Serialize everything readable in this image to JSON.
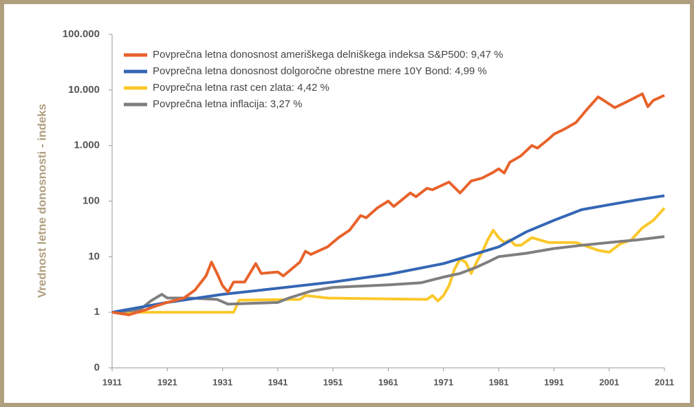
{
  "chart_data": {
    "type": "line",
    "y_label": "Vrednost letne donosnosti - indeks",
    "log_scale": true,
    "legend": "upper-left",
    "xlim": [
      1911,
      2011
    ],
    "xticks": [
      1911,
      1921,
      1931,
      1941,
      1951,
      1961,
      1971,
      1981,
      1991,
      2001,
      2011
    ],
    "ylim": [
      0.1,
      100000
    ],
    "yticks": [
      {
        "value": 0.1,
        "label": "0"
      },
      1,
      10,
      100,
      {
        "value": 1000,
        "label": "1.000"
      },
      {
        "value": 10000,
        "label": "10.000"
      },
      {
        "value": 100000,
        "label": "100.000"
      }
    ],
    "series": [
      {
        "name": "Povprečna letna donosnost ameriškega delniškega indeksa S&P500: 9,47 %",
        "color": "#e8632b",
        "x": [
          1911,
          1914,
          1917,
          1919,
          1921,
          1924,
          1926,
          1928,
          1929,
          1930,
          1931,
          1932,
          1933,
          1935,
          1937,
          1938,
          1941,
          1942,
          1945,
          1946,
          1947,
          1950,
          1952,
          1954,
          1956,
          1957,
          1959,
          1961,
          1962,
          1965,
          1966,
          1968,
          1969,
          1972,
          1974,
          1976,
          1978,
          1980,
          1981,
          1982,
          1983,
          1985,
          1987,
          1988,
          1990,
          1991,
          1993,
          1995,
          1997,
          1999,
          2000,
          2002,
          2004,
          2007,
          2008,
          2009,
          2011
        ],
        "values": [
          1,
          0.9,
          1.1,
          1.3,
          1.5,
          1.8,
          2.5,
          4.5,
          8,
          5,
          3,
          2.3,
          3.5,
          3.5,
          7.5,
          5,
          5.3,
          4.5,
          8,
          12.5,
          11,
          15,
          22,
          30,
          55,
          50,
          75,
          100,
          80,
          140,
          120,
          170,
          160,
          220,
          140,
          230,
          260,
          330,
          380,
          320,
          500,
          650,
          1000,
          900,
          1300,
          1600,
          2000,
          2600,
          4500,
          7500,
          6500,
          4800,
          6000,
          8500,
          5000,
          6500,
          8000
        ]
      },
      {
        "name": "Povprečna letna donosnost dolgoročne obrestne mere 10Y Bond: 4,99 %",
        "color": "#3466b4",
        "x": [
          1911,
          1921,
          1931,
          1941,
          1951,
          1961,
          1971,
          1981,
          1986,
          1991,
          1996,
          2001,
          2006,
          2011
        ],
        "values": [
          1,
          1.5,
          2.1,
          2.7,
          3.5,
          4.8,
          7.5,
          15,
          28,
          45,
          70,
          86,
          105,
          125
        ]
      },
      {
        "name": "Povprečna letna rast cen zlata: 4,42 %",
        "color": "#fbc82a",
        "x": [
          1911,
          1933,
          1934,
          1945,
          1946,
          1950,
          1968,
          1969,
          1970,
          1971,
          1972,
          1973,
          1974,
          1975,
          1976,
          1977,
          1978,
          1979,
          1980,
          1981,
          1982,
          1983,
          1984,
          1985,
          1987,
          1990,
          1995,
          1999,
          2001,
          2003,
          2005,
          2007,
          2009,
          2011
        ],
        "values": [
          1,
          1,
          1.65,
          1.7,
          2,
          1.8,
          1.7,
          2,
          1.6,
          2,
          3,
          6,
          9,
          8,
          5,
          8,
          12,
          20,
          30,
          22,
          18,
          20,
          16,
          16,
          22,
          18,
          18,
          13,
          12,
          17,
          20,
          33,
          45,
          75
        ]
      },
      {
        "name": "Povprečna letna inflacija: 3,27 %",
        "color": "#7f7f7f",
        "x": [
          1911,
          1916,
          1918,
          1920,
          1921,
          1925,
          1930,
          1932,
          1941,
          1943,
          1947,
          1951,
          1961,
          1967,
          1971,
          1974,
          1977,
          1979,
          1981,
          1986,
          1991,
          1996,
          2001,
          2006,
          2011
        ],
        "values": [
          1,
          1.1,
          1.6,
          2.1,
          1.8,
          1.8,
          1.7,
          1.4,
          1.5,
          1.8,
          2.4,
          2.8,
          3.1,
          3.4,
          4.3,
          5,
          6.5,
          8,
          10,
          11.5,
          14,
          16,
          18,
          20,
          23
        ]
      }
    ]
  }
}
